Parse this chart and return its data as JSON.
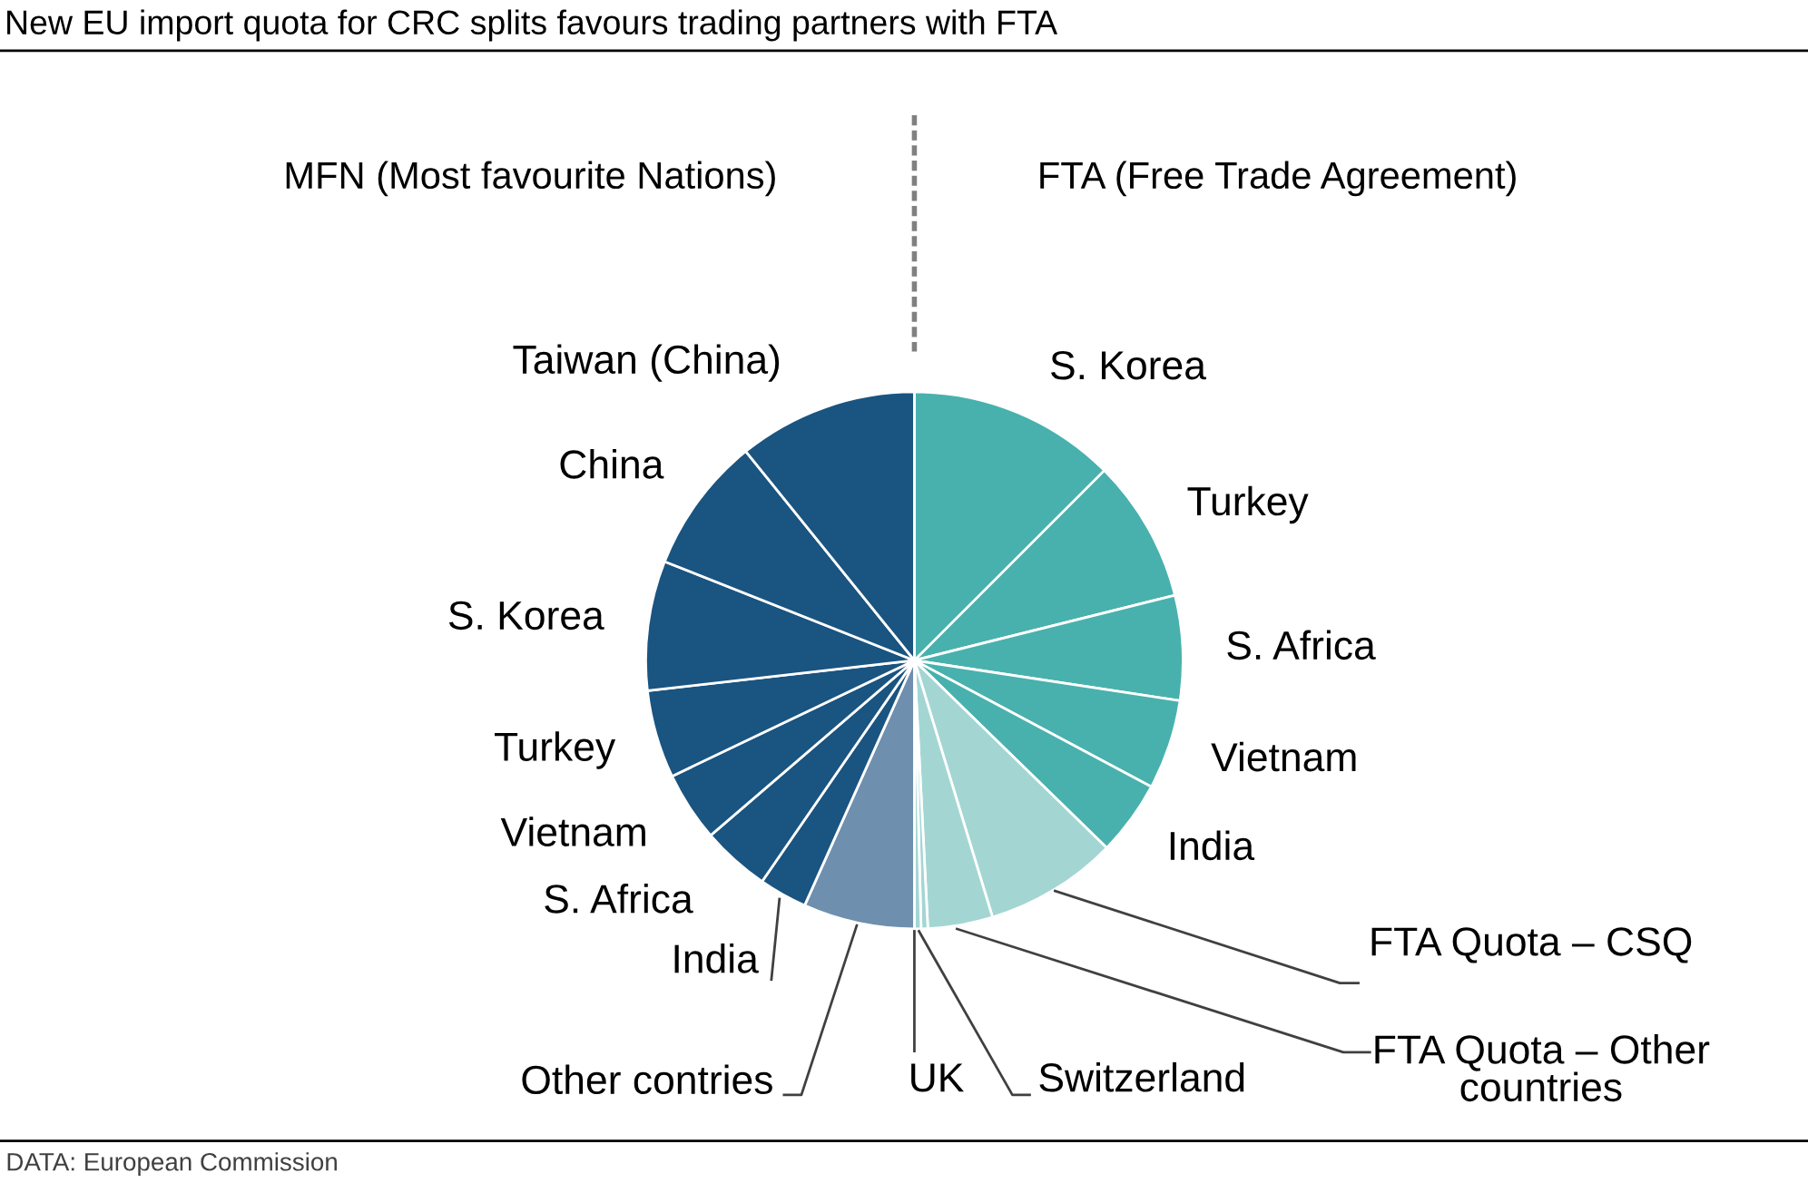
{
  "chart_data": {
    "type": "pie",
    "title": "New EU import quota for CRC splits favours trading partners with FTA",
    "categories": [
      "S. Korea",
      "Turkey",
      "S. Africa",
      "Vietnam",
      "India",
      "FTA Quota – CSQ",
      "FTA Quota – Other countries",
      "Switzerland",
      "UK",
      "Other contries",
      "India",
      "S. Africa",
      "Vietnam",
      "Turkey",
      "S. Korea",
      "China",
      "Taiwan (China)"
    ],
    "values": [
      12.5,
      8.6,
      6.3,
      5.4,
      4.5,
      8.0,
      3.9,
      0.4,
      0.4,
      6.7,
      2.9,
      4.1,
      4.2,
      5.3,
      7.8,
      8.2,
      10.8
    ],
    "colors": [
      "#48b1ad",
      "#48b1ad",
      "#48b1ad",
      "#48b1ad",
      "#48b1ad",
      "#a3d6d3",
      "#a3d6d3",
      "#a3d6d3",
      "#a3d6d3",
      "#6f8fae",
      "#1a5480",
      "#1a5480",
      "#1a5480",
      "#1a5480",
      "#1a5480",
      "#1a5480",
      "#1a5480"
    ],
    "annotations": [
      "MFN (Most favourite Nations)",
      "FTA (Free Trade Agreement)",
      "DATA: European Commission"
    ]
  }
}
